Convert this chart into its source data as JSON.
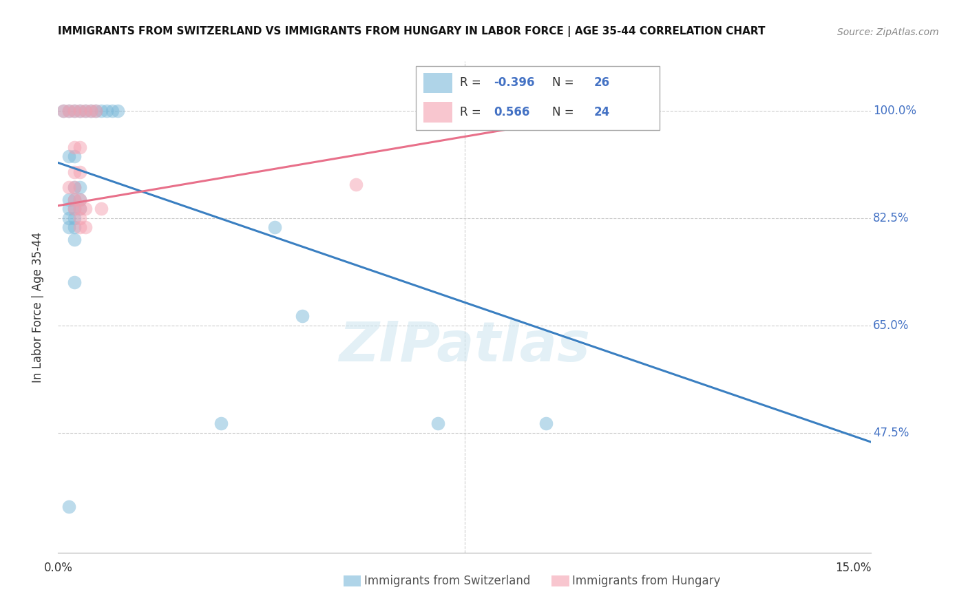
{
  "title": "IMMIGRANTS FROM SWITZERLAND VS IMMIGRANTS FROM HUNGARY IN LABOR FORCE | AGE 35-44 CORRELATION CHART",
  "source": "Source: ZipAtlas.com",
  "ylabel": "In Labor Force | Age 35-44",
  "xlim": [
    0.0,
    0.15
  ],
  "ylim": [
    0.28,
    1.08
  ],
  "yticks": [
    0.475,
    0.65,
    0.825,
    1.0
  ],
  "ytick_labels": [
    "47.5%",
    "65.0%",
    "82.5%",
    "100.0%"
  ],
  "watermark": "ZIPatlas",
  "swiss_color": "#7ab8d9",
  "hungary_color": "#f4a0b0",
  "swiss_line_color": "#3a7fc1",
  "hungary_line_color": "#e8708a",
  "swiss_scatter": [
    [
      0.001,
      1.0
    ],
    [
      0.002,
      1.0
    ],
    [
      0.003,
      1.0
    ],
    [
      0.004,
      1.0
    ],
    [
      0.005,
      1.0
    ],
    [
      0.006,
      1.0
    ],
    [
      0.007,
      1.0
    ],
    [
      0.008,
      1.0
    ],
    [
      0.009,
      1.0
    ],
    [
      0.01,
      1.0
    ],
    [
      0.011,
      1.0
    ],
    [
      0.002,
      0.925
    ],
    [
      0.003,
      0.925
    ],
    [
      0.003,
      0.875
    ],
    [
      0.004,
      0.875
    ],
    [
      0.002,
      0.855
    ],
    [
      0.003,
      0.855
    ],
    [
      0.004,
      0.855
    ],
    [
      0.002,
      0.84
    ],
    [
      0.003,
      0.84
    ],
    [
      0.004,
      0.84
    ],
    [
      0.002,
      0.825
    ],
    [
      0.003,
      0.825
    ],
    [
      0.002,
      0.81
    ],
    [
      0.003,
      0.81
    ],
    [
      0.003,
      0.79
    ],
    [
      0.04,
      0.81
    ],
    [
      0.003,
      0.72
    ],
    [
      0.045,
      0.665
    ],
    [
      0.03,
      0.49
    ],
    [
      0.07,
      0.49
    ],
    [
      0.09,
      0.49
    ],
    [
      0.002,
      0.355
    ]
  ],
  "hungary_scatter": [
    [
      0.001,
      1.0
    ],
    [
      0.002,
      1.0
    ],
    [
      0.003,
      1.0
    ],
    [
      0.004,
      1.0
    ],
    [
      0.005,
      1.0
    ],
    [
      0.006,
      1.0
    ],
    [
      0.007,
      1.0
    ],
    [
      0.003,
      0.94
    ],
    [
      0.004,
      0.94
    ],
    [
      0.003,
      0.9
    ],
    [
      0.004,
      0.9
    ],
    [
      0.002,
      0.875
    ],
    [
      0.003,
      0.875
    ],
    [
      0.003,
      0.855
    ],
    [
      0.004,
      0.855
    ],
    [
      0.003,
      0.84
    ],
    [
      0.004,
      0.84
    ],
    [
      0.005,
      0.84
    ],
    [
      0.004,
      0.825
    ],
    [
      0.004,
      0.81
    ],
    [
      0.005,
      0.81
    ],
    [
      0.055,
      0.88
    ],
    [
      0.008,
      0.84
    ]
  ],
  "swiss_line": {
    "x0": 0.0,
    "y0": 0.915,
    "x1": 0.15,
    "y1": 0.46
  },
  "hungary_line": {
    "x0": 0.0,
    "y0": 0.845,
    "x1": 0.09,
    "y1": 0.98
  }
}
